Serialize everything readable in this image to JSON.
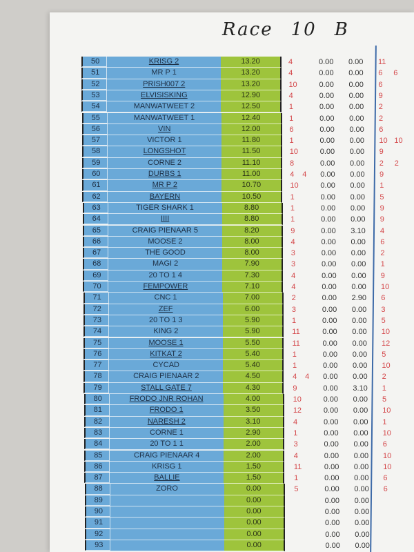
{
  "header": {
    "title_parts": [
      "Race",
      "10",
      "B"
    ]
  },
  "rows": [
    {
      "n": "50",
      "name": "KRISG 2",
      "u": true,
      "score": "13.20",
      "r1": "4",
      "r2": "",
      "a": "0.00",
      "b": "0.00",
      "c": "11",
      "d": ""
    },
    {
      "n": "51",
      "name": "MR P 1",
      "u": false,
      "score": "13.20",
      "r1": "4",
      "r2": "",
      "a": "0.00",
      "b": "0.00",
      "c": "6",
      "d": "6"
    },
    {
      "n": "52",
      "name": "PRISH007 2",
      "u": true,
      "score": "13.20",
      "r1": "10",
      "r2": "",
      "a": "0.00",
      "b": "0.00",
      "c": "6",
      "d": ""
    },
    {
      "n": "53",
      "name": "ELVISISKING",
      "u": true,
      "score": "12.90",
      "r1": "4",
      "r2": "",
      "a": "0.00",
      "b": "0.00",
      "c": "9",
      "d": ""
    },
    {
      "n": "54",
      "name": "MANWATWEET 2",
      "u": false,
      "score": "12.50",
      "r1": "1",
      "r2": "",
      "a": "0.00",
      "b": "0.00",
      "c": "2",
      "d": ""
    },
    {
      "n": "55",
      "name": "MANWATWEET 1",
      "u": false,
      "score": "12.40",
      "r1": "1",
      "r2": "",
      "a": "0.00",
      "b": "0.00",
      "c": "2",
      "d": ""
    },
    {
      "n": "56",
      "name": "VIN",
      "u": true,
      "score": "12.00",
      "r1": "6",
      "r2": "",
      "a": "0.00",
      "b": "0.00",
      "c": "6",
      "d": ""
    },
    {
      "n": "57",
      "name": "VICTOR 1",
      "u": false,
      "score": "11.80",
      "r1": "1",
      "r2": "",
      "a": "0.00",
      "b": "0.00",
      "c": "10",
      "d": "10"
    },
    {
      "n": "58",
      "name": "LONGSHOT",
      "u": true,
      "score": "11.50",
      "r1": "10",
      "r2": "",
      "a": "0.00",
      "b": "0.00",
      "c": "9",
      "d": ""
    },
    {
      "n": "59",
      "name": "CORNE 2",
      "u": false,
      "score": "11.10",
      "r1": "8",
      "r2": "",
      "a": "0.00",
      "b": "0.00",
      "c": "2",
      "d": "2"
    },
    {
      "n": "60",
      "name": "DURBS 1",
      "u": true,
      "score": "11.00",
      "r1": "4",
      "r2": "4",
      "a": "0.00",
      "b": "0.00",
      "c": "9",
      "d": ""
    },
    {
      "n": "61",
      "name": "MR P 2",
      "u": true,
      "score": "10.70",
      "r1": "10",
      "r2": "",
      "a": "0.00",
      "b": "0.00",
      "c": "1",
      "d": ""
    },
    {
      "n": "62",
      "name": "BAYERN",
      "u": true,
      "score": "10.50",
      "r1": "1",
      "r2": "",
      "a": "0.00",
      "b": "0.00",
      "c": "5",
      "d": ""
    },
    {
      "n": "63",
      "name": "TIGER SHARK 1",
      "u": false,
      "score": "8.80",
      "r1": "1",
      "r2": "",
      "a": "0.00",
      "b": "0.00",
      "c": "9",
      "d": ""
    },
    {
      "n": "64",
      "name": "IIII",
      "u": true,
      "score": "8.80",
      "r1": "1",
      "r2": "",
      "a": "0.00",
      "b": "0.00",
      "c": "9",
      "d": ""
    },
    {
      "n": "65",
      "name": "CRAIG PIENAAR 5",
      "u": false,
      "score": "8.20",
      "r1": "9",
      "r2": "",
      "a": "0.00",
      "b": "3.10",
      "c": "4",
      "d": ""
    },
    {
      "n": "66",
      "name": "MOOSE 2",
      "u": false,
      "score": "8.00",
      "r1": "4",
      "r2": "",
      "a": "0.00",
      "b": "0.00",
      "c": "6",
      "d": ""
    },
    {
      "n": "67",
      "name": "THE GOOD",
      "u": false,
      "score": "8.00",
      "r1": "3",
      "r2": "",
      "a": "0.00",
      "b": "0.00",
      "c": "2",
      "d": ""
    },
    {
      "n": "68",
      "name": "MAGI 2",
      "u": false,
      "score": "7.90",
      "r1": "3",
      "r2": "",
      "a": "0.00",
      "b": "0.00",
      "c": "1",
      "d": ""
    },
    {
      "n": "69",
      "name": "20 TO 1 4",
      "u": false,
      "score": "7.30",
      "r1": "4",
      "r2": "",
      "a": "0.00",
      "b": "0.00",
      "c": "9",
      "d": ""
    },
    {
      "n": "70",
      "name": "FEMPOWER",
      "u": true,
      "score": "7.10",
      "r1": "4",
      "r2": "",
      "a": "0.00",
      "b": "0.00",
      "c": "10",
      "d": ""
    },
    {
      "n": "71",
      "name": "CNC 1",
      "u": false,
      "score": "7.00",
      "r1": "2",
      "r2": "",
      "a": "0.00",
      "b": "2.90",
      "c": "6",
      "d": ""
    },
    {
      "n": "72",
      "name": "ZEF",
      "u": true,
      "score": "6.00",
      "r1": "3",
      "r2": "",
      "a": "0.00",
      "b": "0.00",
      "c": "3",
      "d": ""
    },
    {
      "n": "73",
      "name": "20 TO 1 3",
      "u": false,
      "score": "5.90",
      "r1": "1",
      "r2": "",
      "a": "0.00",
      "b": "0.00",
      "c": "5",
      "d": ""
    },
    {
      "n": "74",
      "name": "KING 2",
      "u": false,
      "score": "5.90",
      "r1": "11",
      "r2": "",
      "a": "0.00",
      "b": "0.00",
      "c": "10",
      "d": ""
    },
    {
      "n": "75",
      "name": "MOOSE 1",
      "u": true,
      "score": "5.50",
      "r1": "11",
      "r2": "",
      "a": "0.00",
      "b": "0.00",
      "c": "12",
      "d": ""
    },
    {
      "n": "76",
      "name": "KITKAT 2",
      "u": true,
      "score": "5.40",
      "r1": "1",
      "r2": "",
      "a": "0.00",
      "b": "0.00",
      "c": "5",
      "d": ""
    },
    {
      "n": "77",
      "name": "CYCAD",
      "u": false,
      "score": "5.40",
      "r1": "1",
      "r2": "",
      "a": "0.00",
      "b": "0.00",
      "c": "10",
      "d": ""
    },
    {
      "n": "78",
      "name": "CRAIG PIENAAR 2",
      "u": false,
      "score": "4.50",
      "r1": "4",
      "r2": "4",
      "a": "0.00",
      "b": "0.00",
      "c": "2",
      "d": ""
    },
    {
      "n": "79",
      "name": "STALL GATE 7",
      "u": true,
      "score": "4.30",
      "r1": "9",
      "r2": "",
      "a": "0.00",
      "b": "3.10",
      "c": "1",
      "d": ""
    },
    {
      "n": "80",
      "name": "FRODO  JNR  ROHAN",
      "u": true,
      "score": "4.00",
      "r1": "10",
      "r2": "",
      "a": "0.00",
      "b": "0.00",
      "c": "5",
      "d": ""
    },
    {
      "n": "81",
      "name": "FRODO 1",
      "u": true,
      "score": "3.50",
      "r1": "12",
      "r2": "",
      "a": "0.00",
      "b": "0.00",
      "c": "10",
      "d": ""
    },
    {
      "n": "82",
      "name": "NARESH 2",
      "u": true,
      "score": "3.10",
      "r1": "4",
      "r2": "",
      "a": "0.00",
      "b": "0.00",
      "c": "1",
      "d": ""
    },
    {
      "n": "83",
      "name": "CORNE 1",
      "u": false,
      "score": "2.90",
      "r1": "1",
      "r2": "",
      "a": "0.00",
      "b": "0.00",
      "c": "10",
      "d": ""
    },
    {
      "n": "84",
      "name": "20 TO 1 1",
      "u": false,
      "score": "2.00",
      "r1": "3",
      "r2": "",
      "a": "0.00",
      "b": "0.00",
      "c": "6",
      "d": ""
    },
    {
      "n": "85",
      "name": "CRAIG PIENAAR 4",
      "u": false,
      "score": "2.00",
      "r1": "4",
      "r2": "",
      "a": "0.00",
      "b": "0.00",
      "c": "10",
      "d": ""
    },
    {
      "n": "86",
      "name": "KRISG 1",
      "u": false,
      "score": "1.50",
      "r1": "11",
      "r2": "",
      "a": "0.00",
      "b": "0.00",
      "c": "10",
      "d": ""
    },
    {
      "n": "87",
      "name": "BALLIE",
      "u": true,
      "score": "1.50",
      "r1": "1",
      "r2": "",
      "a": "0.00",
      "b": "0.00",
      "c": "6",
      "d": ""
    },
    {
      "n": "88",
      "name": "ZORO",
      "u": false,
      "score": "0.00",
      "r1": "5",
      "r2": "",
      "a": "0.00",
      "b": "0.00",
      "c": "6",
      "d": ""
    },
    {
      "n": "89",
      "name": "",
      "u": false,
      "score": "0.00",
      "r1": "",
      "r2": "",
      "a": "0.00",
      "b": "0.00",
      "c": "",
      "d": ""
    },
    {
      "n": "90",
      "name": "",
      "u": false,
      "score": "0.00",
      "r1": "",
      "r2": "",
      "a": "0.00",
      "b": "0.00",
      "c": "",
      "d": ""
    },
    {
      "n": "91",
      "name": "",
      "u": false,
      "score": "0.00",
      "r1": "",
      "r2": "",
      "a": "0.00",
      "b": "0.00",
      "c": "",
      "d": ""
    },
    {
      "n": "92",
      "name": "",
      "u": false,
      "score": "0.00",
      "r1": "",
      "r2": "",
      "a": "0.00",
      "b": "0.00",
      "c": "",
      "d": ""
    },
    {
      "n": "93",
      "name": "",
      "u": false,
      "score": "0.00",
      "r1": "",
      "r2": "",
      "a": "0.00",
      "b": "0.00",
      "c": "",
      "d": ""
    }
  ],
  "colors": {
    "name_cell": "#6aa9d8",
    "score_cell": "#9ec43c",
    "handwritten_red": "#d4474a",
    "divider_blue": "#3d6aa8"
  }
}
